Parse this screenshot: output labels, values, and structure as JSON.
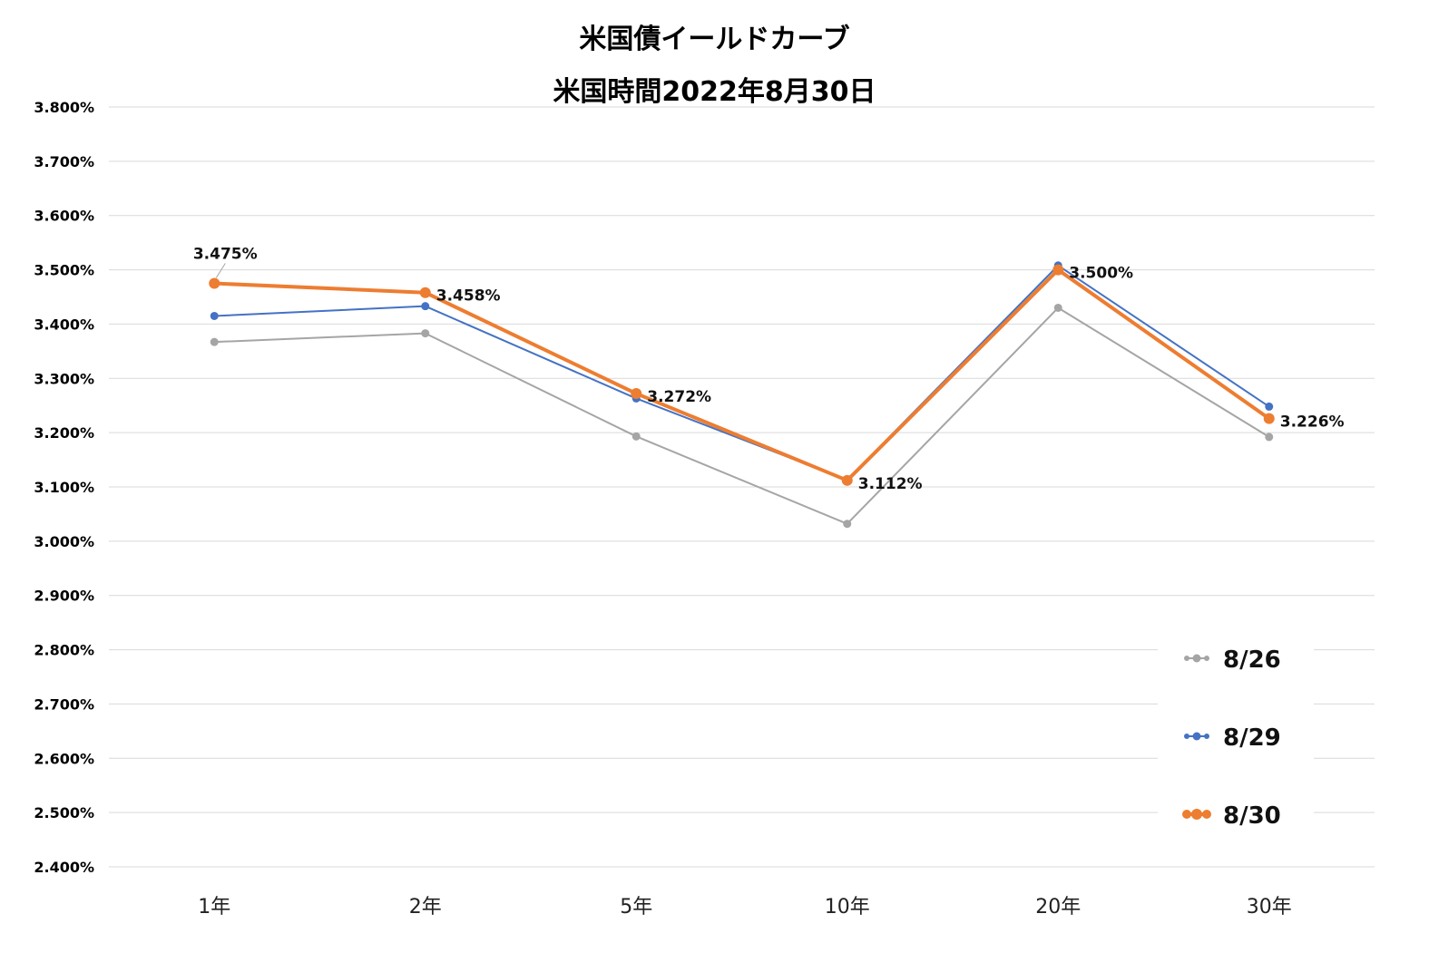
{
  "chart_data": {
    "type": "line",
    "title": "米国債イールドカーブ",
    "subtitle": "米国時間2022年8月30日",
    "categories": [
      "1年",
      "2年",
      "5年",
      "10年",
      "20年",
      "30年"
    ],
    "ylim": [
      2.4,
      3.8
    ],
    "y_ticks": [
      "3.800%",
      "3.700%",
      "3.600%",
      "3.500%",
      "3.400%",
      "3.300%",
      "3.200%",
      "3.100%",
      "3.000%",
      "2.900%",
      "2.800%",
      "2.700%",
      "2.600%",
      "2.500%",
      "2.400%"
    ],
    "grid": true,
    "legend_position": "bottom-right",
    "series": [
      {
        "name": "8/26",
        "color": "#a5a5a5",
        "values": [
          3.367,
          3.383,
          3.193,
          3.032,
          3.43,
          3.192
        ]
      },
      {
        "name": "8/29",
        "color": "#4472c4",
        "values": [
          3.415,
          3.433,
          3.263,
          3.113,
          3.508,
          3.248
        ]
      },
      {
        "name": "8/30",
        "color": "#ed7d31",
        "values": [
          3.475,
          3.458,
          3.272,
          3.112,
          3.5,
          3.226
        ]
      }
    ],
    "data_labels": [
      "3.475%",
      "3.458%",
      "3.272%",
      "3.112%",
      "3.500%",
      "3.226%"
    ]
  }
}
